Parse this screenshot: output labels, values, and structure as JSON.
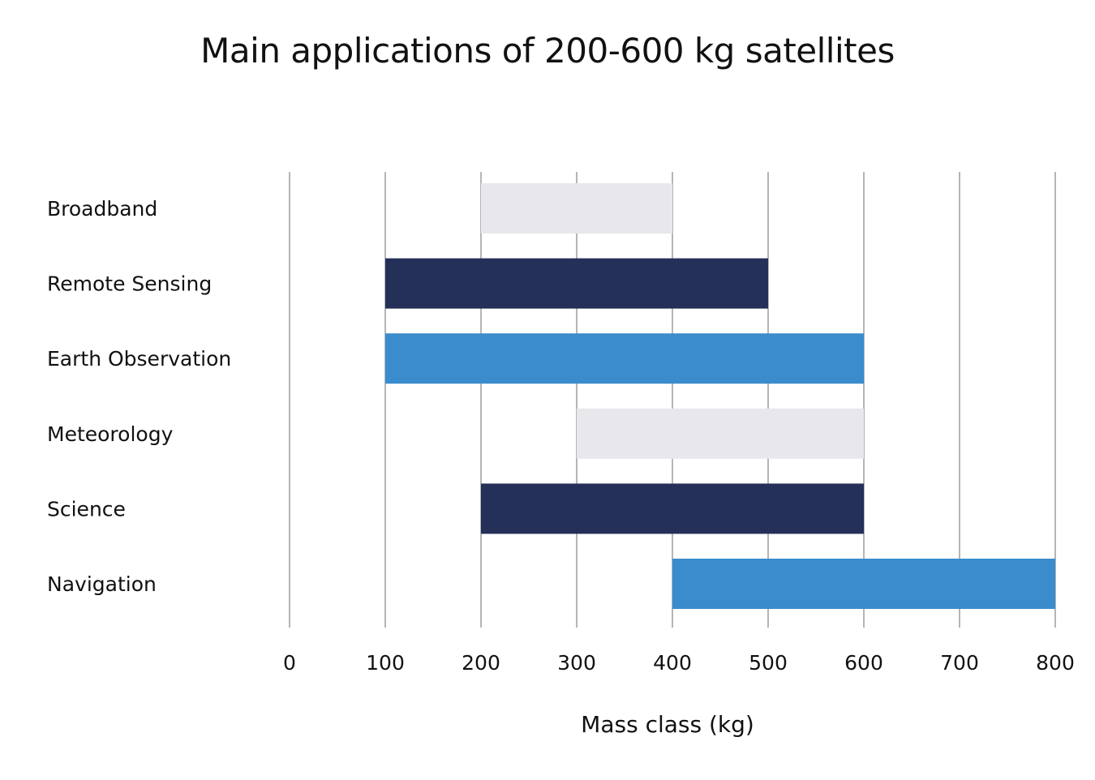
{
  "chart_data": {
    "type": "bar",
    "orientation": "horizontal",
    "bar_style": "floating-range",
    "title": "Main applications of 200-600 kg satellites",
    "xlabel": "Mass class (kg)",
    "ylabel": "",
    "xlim": [
      0,
      800
    ],
    "xticks": [
      0,
      100,
      200,
      300,
      400,
      500,
      600,
      700,
      800
    ],
    "grid": "vertical",
    "categories": [
      "Broadband",
      "Remote Sensing",
      "Earth Observation",
      "Meteorology",
      "Science",
      "Navigation"
    ],
    "ranges": [
      {
        "category": "Broadband",
        "start": 200,
        "end": 400,
        "color": "#e8e8ec"
      },
      {
        "category": "Remote Sensing",
        "start": 100,
        "end": 500,
        "color": "#243058"
      },
      {
        "category": "Earth Observation",
        "start": 100,
        "end": 600,
        "color": "#3a8ccc"
      },
      {
        "category": "Meteorology",
        "start": 300,
        "end": 600,
        "color": "#e8e8ec"
      },
      {
        "category": "Science",
        "start": 200,
        "end": 600,
        "color": "#243058"
      },
      {
        "category": "Navigation",
        "start": 400,
        "end": 800,
        "color": "#3a8ccc"
      }
    ]
  }
}
